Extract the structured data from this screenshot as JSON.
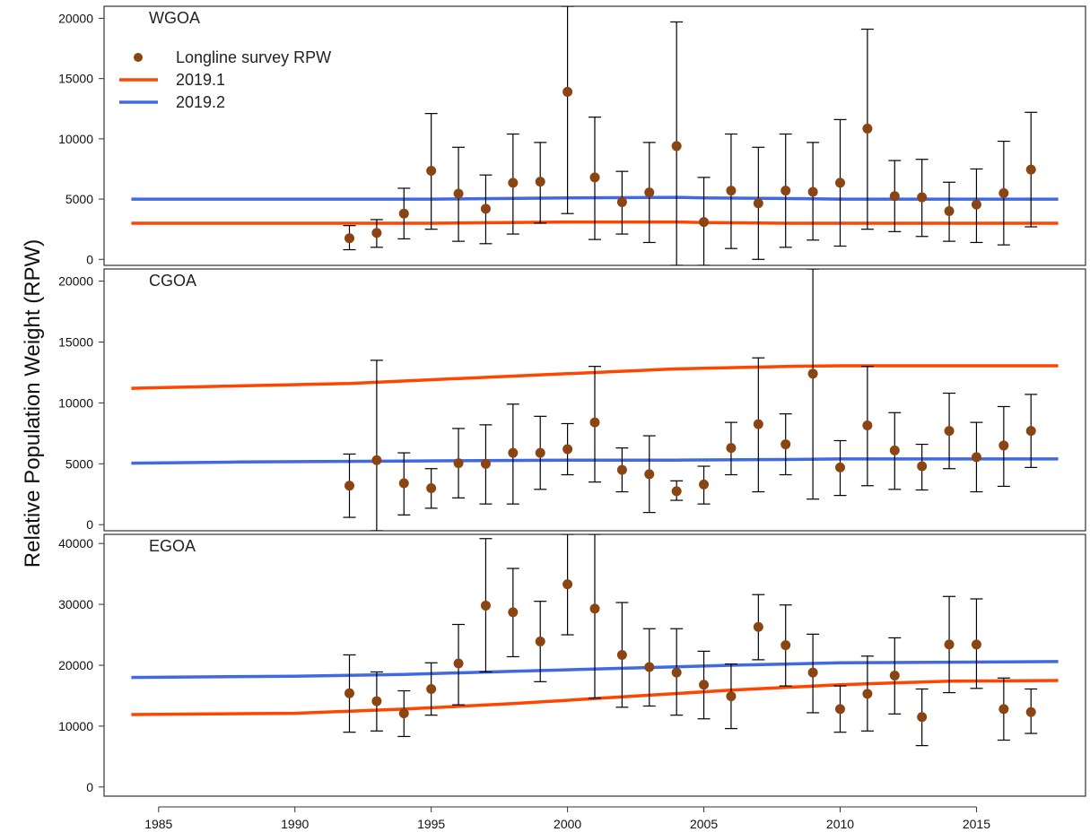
{
  "chart_data": {
    "type": "scatter",
    "ylabel": "Relative Population Weight (RPW)",
    "xlim": [
      1983,
      2019
    ],
    "x_ticks": [
      1985,
      1990,
      1995,
      2000,
      2005,
      2010,
      2015
    ],
    "colors": {
      "survey": "#8B4513",
      "model_2019_1": "#FF4500",
      "model_2019_2": "#4169E1",
      "errorbar": "#000000"
    },
    "legend": {
      "placement": "top-left of first panel",
      "entries": [
        "Longline survey RPW",
        "2019.1",
        "2019.2"
      ]
    },
    "panels": [
      {
        "label": "WGOA",
        "ylim": [
          -500,
          21000
        ],
        "y_ticks": [
          0,
          5000,
          10000,
          15000,
          20000
        ],
        "survey": {
          "years": [
            1992,
            1993,
            1994,
            1995,
            1996,
            1997,
            1998,
            1999,
            2000,
            2001,
            2002,
            2003,
            2004,
            2005,
            2006,
            2007,
            2008,
            2009,
            2010,
            2011,
            2012,
            2013,
            2014,
            2015,
            2016,
            2017
          ],
          "values": [
            1750,
            2200,
            3800,
            7350,
            5450,
            4200,
            6350,
            6450,
            13900,
            6800,
            4750,
            5550,
            9400,
            3100,
            5700,
            4650,
            5700,
            5600,
            6350,
            10850,
            5250,
            5150,
            4000,
            4550,
            5500,
            7450
          ],
          "lower": [
            800,
            1000,
            1700,
            2500,
            1500,
            1300,
            2100,
            3000,
            3800,
            1650,
            2100,
            1400,
            -500,
            -500,
            900,
            0,
            1000,
            1600,
            1100,
            2500,
            2300,
            1900,
            1500,
            1400,
            1200,
            2700
          ],
          "upper": [
            2800,
            3300,
            5900,
            12100,
            9300,
            7000,
            10400,
            9700,
            21000,
            11800,
            7300,
            9700,
            19700,
            6800,
            10400,
            9300,
            10400,
            9700,
            11600,
            19100,
            8200,
            8300,
            6400,
            7500,
            9800,
            12200
          ]
        },
        "series": [
          {
            "name": "2019.1",
            "x": [
              1984,
              1990,
              1995,
              2000,
              2004,
              2005,
              2008,
              2010,
              2015,
              2018
            ],
            "values": [
              3000,
              3000,
              3000,
              3100,
              3100,
              3050,
              3000,
              3000,
              3000,
              3000
            ]
          },
          {
            "name": "2019.2",
            "x": [
              1984,
              1990,
              1995,
              2000,
              2004,
              2005,
              2008,
              2010,
              2015,
              2018
            ],
            "values": [
              5000,
              5000,
              5000,
              5100,
              5150,
              5100,
              5050,
              5000,
              5000,
              5000
            ]
          }
        ]
      },
      {
        "label": "CGOA",
        "ylim": [
          -500,
          21000
        ],
        "y_ticks": [
          0,
          5000,
          10000,
          15000,
          20000
        ],
        "survey": {
          "years": [
            1992,
            1993,
            1994,
            1995,
            1996,
            1997,
            1998,
            1999,
            2000,
            2001,
            2002,
            2003,
            2004,
            2005,
            2006,
            2007,
            2008,
            2009,
            2010,
            2011,
            2012,
            2013,
            2014,
            2015,
            2016,
            2017
          ],
          "values": [
            3200,
            5300,
            3400,
            3000,
            5050,
            5000,
            5900,
            5900,
            6200,
            8400,
            4500,
            4150,
            2750,
            3300,
            6300,
            8250,
            6600,
            12400,
            4700,
            8150,
            6100,
            4800,
            7700,
            5550,
            6500,
            7700
          ],
          "lower": [
            600,
            -500,
            800,
            1350,
            2200,
            1700,
            1700,
            2900,
            4100,
            3500,
            2700,
            1000,
            2000,
            1700,
            4100,
            2700,
            4100,
            2100,
            2400,
            3200,
            2900,
            2850,
            4600,
            2700,
            3150,
            4700
          ],
          "upper": [
            5800,
            13500,
            5900,
            4600,
            7900,
            8200,
            9900,
            8900,
            8300,
            13000,
            6300,
            7300,
            3600,
            4800,
            8400,
            13700,
            9100,
            21000,
            6900,
            13000,
            9200,
            6600,
            10800,
            8400,
            9700,
            10700
          ]
        },
        "series": [
          {
            "name": "2019.1",
            "x": [
              1984,
              1988,
              1992,
              1996,
              2000,
              2004,
              2008,
              2010,
              2014,
              2018
            ],
            "values": [
              11200,
              11400,
              11600,
              12000,
              12400,
              12800,
              13000,
              13050,
              13050,
              13050
            ]
          },
          {
            "name": "2019.2",
            "x": [
              1984,
              1988,
              1992,
              1996,
              2000,
              2004,
              2008,
              2010,
              2014,
              2018
            ],
            "values": [
              5050,
              5150,
              5200,
              5250,
              5300,
              5300,
              5350,
              5400,
              5400,
              5400
            ]
          }
        ]
      },
      {
        "label": "EGOA",
        "ylim": [
          -1500,
          41500
        ],
        "y_ticks": [
          0,
          10000,
          20000,
          30000,
          40000
        ],
        "survey": {
          "years": [
            1992,
            1993,
            1994,
            1995,
            1996,
            1997,
            1998,
            1999,
            2000,
            2001,
            2002,
            2003,
            2004,
            2005,
            2006,
            2007,
            2008,
            2009,
            2010,
            2011,
            2012,
            2013,
            2014,
            2015,
            2016,
            2017
          ],
          "values": [
            15400,
            14100,
            12100,
            16100,
            20300,
            29800,
            28700,
            23900,
            33300,
            29300,
            21700,
            19700,
            18800,
            16800,
            14900,
            26300,
            23300,
            18800,
            12800,
            15300,
            18300,
            11500,
            23400,
            23400,
            12800,
            12300
          ],
          "lower": [
            9000,
            9200,
            8300,
            11800,
            13500,
            18900,
            21400,
            17300,
            25000,
            14600,
            13100,
            13300,
            11800,
            11200,
            9600,
            20900,
            16600,
            12200,
            9000,
            9200,
            12000,
            6800,
            15500,
            16200,
            7700,
            8800
          ],
          "upper": [
            21700,
            18900,
            15800,
            20400,
            26700,
            40800,
            35900,
            30500,
            41500,
            41500,
            30300,
            26000,
            26000,
            22300,
            20200,
            31600,
            29900,
            25100,
            16600,
            21500,
            24500,
            16100,
            31300,
            30900,
            17900,
            16100
          ]
        },
        "series": [
          {
            "name": "2019.1",
            "x": [
              1984,
              1990,
              1994,
              1998,
              2002,
              2006,
              2010,
              2014,
              2018
            ],
            "values": [
              11900,
              12100,
              12800,
              13700,
              14800,
              15900,
              16800,
              17400,
              17500
            ]
          },
          {
            "name": "2019.2",
            "x": [
              1984,
              1990,
              1994,
              1998,
              2002,
              2006,
              2010,
              2014,
              2018
            ],
            "values": [
              18000,
              18200,
              18500,
              19000,
              19500,
              20000,
              20400,
              20500,
              20600
            ]
          }
        ]
      }
    ]
  }
}
